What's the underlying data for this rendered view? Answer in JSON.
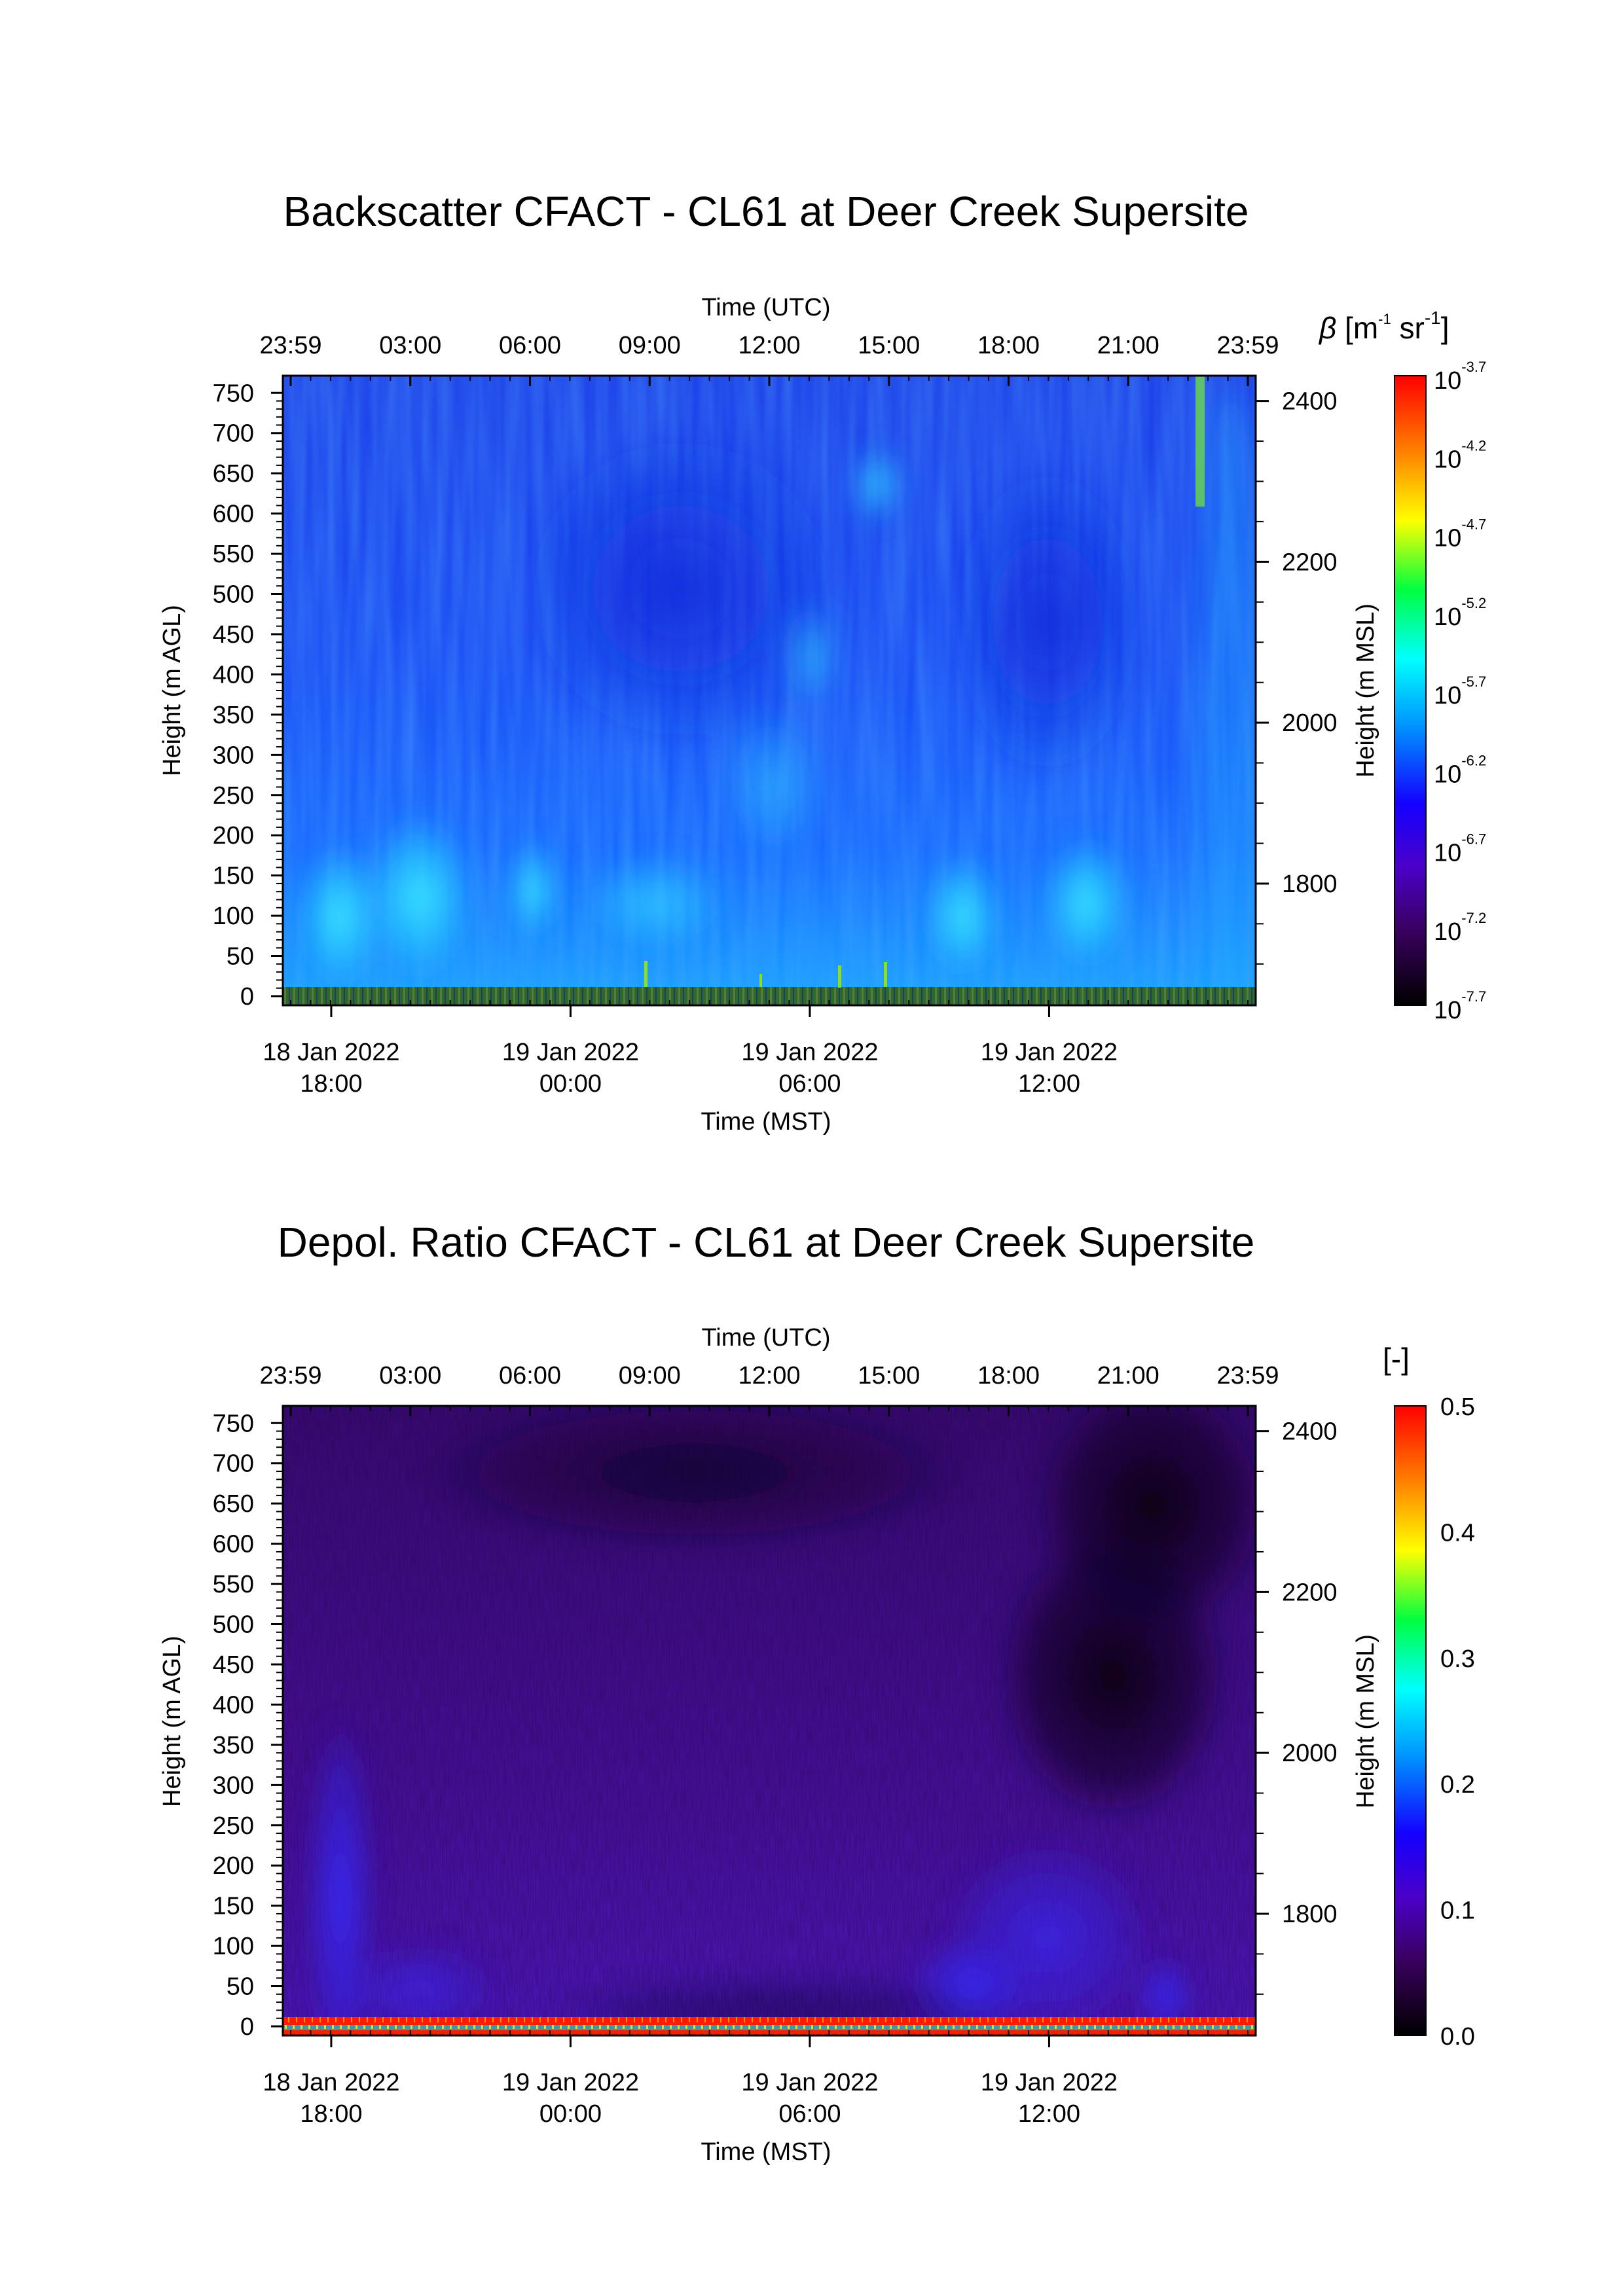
{
  "chart_data": [
    {
      "type": "heatmap",
      "title": "Backscatter CFACT - CL61 at Deer Creek Supersite",
      "top_xlabel": "Time (UTC)",
      "top_xticks": [
        "23:59",
        "03:00",
        "06:00",
        "09:00",
        "12:00",
        "15:00",
        "18:00",
        "21:00",
        "23:59"
      ],
      "xlabel": "Time (MST)",
      "xticks": [
        {
          "date": "18 Jan 2022",
          "time": "18:00"
        },
        {
          "date": "19 Jan 2022",
          "time": "00:00"
        },
        {
          "date": "19 Jan 2022",
          "time": "06:00"
        },
        {
          "date": "19 Jan 2022",
          "time": "12:00"
        }
      ],
      "ylabel": "Height (m AGL)",
      "yticks": [
        "750",
        "700",
        "650",
        "600",
        "550",
        "500",
        "450",
        "400",
        "350",
        "300",
        "250",
        "200",
        "150",
        "100",
        "50",
        "0"
      ],
      "ylim": [
        0,
        760
      ],
      "y2label": "Height (m MSL)",
      "y2ticks": [
        "2400",
        "2200",
        "2000",
        "1800"
      ],
      "colorbar": {
        "unit_prefix": "β [m",
        "unit_exp1": "-1",
        "unit_mid": " sr",
        "unit_exp2": "-1",
        "unit_suffix": "]",
        "scale": "log",
        "base": "10",
        "exponents": [
          "-3.7",
          "-4.2",
          "-4.7",
          "-5.2",
          "-5.7",
          "-6.2",
          "-6.7",
          "-7.2",
          "-7.7"
        ],
        "colormap": [
          "#000000",
          "#5a0a7a",
          "#2a00ff",
          "#0080ff",
          "#00ffff",
          "#00ff00",
          "#ffff00",
          "#ff8000",
          "#ff0000"
        ]
      }
    },
    {
      "type": "heatmap",
      "title": "Depol. Ratio CFACT - CL61 at Deer Creek Supersite",
      "top_xlabel": "Time (UTC)",
      "top_xticks": [
        "23:59",
        "03:00",
        "06:00",
        "09:00",
        "12:00",
        "15:00",
        "18:00",
        "21:00",
        "23:59"
      ],
      "xlabel": "Time (MST)",
      "xticks": [
        {
          "date": "19 Jan 2022",
          "time": "00:00"
        },
        {
          "date": "19 Jan 2022",
          "time": "06:00"
        },
        {
          "date": "19 Jan 2022",
          "time": "12:00"
        },
        {
          "date": "18 Jan 2022",
          "time": "18:00"
        }
      ],
      "ylabel": "Height (m AGL)",
      "yticks": [
        "750",
        "700",
        "650",
        "600",
        "550",
        "500",
        "450",
        "400",
        "350",
        "300",
        "250",
        "200",
        "150",
        "100",
        "50",
        "0"
      ],
      "ylim": [
        0,
        760
      ],
      "y2label": "Height (m MSL)",
      "y2ticks": [
        "2400",
        "2200",
        "2000",
        "1800"
      ],
      "colorbar": {
        "unit": "[-]",
        "scale": "linear",
        "ticks": [
          "0.5",
          "0.4",
          "0.3",
          "0.2",
          "0.1",
          "0.0"
        ],
        "colormap": [
          "#000000",
          "#5a0a7a",
          "#2a00ff",
          "#0080ff",
          "#00ffff",
          "#00ff00",
          "#ffff00",
          "#ff8000",
          "#ff0000"
        ]
      }
    }
  ]
}
